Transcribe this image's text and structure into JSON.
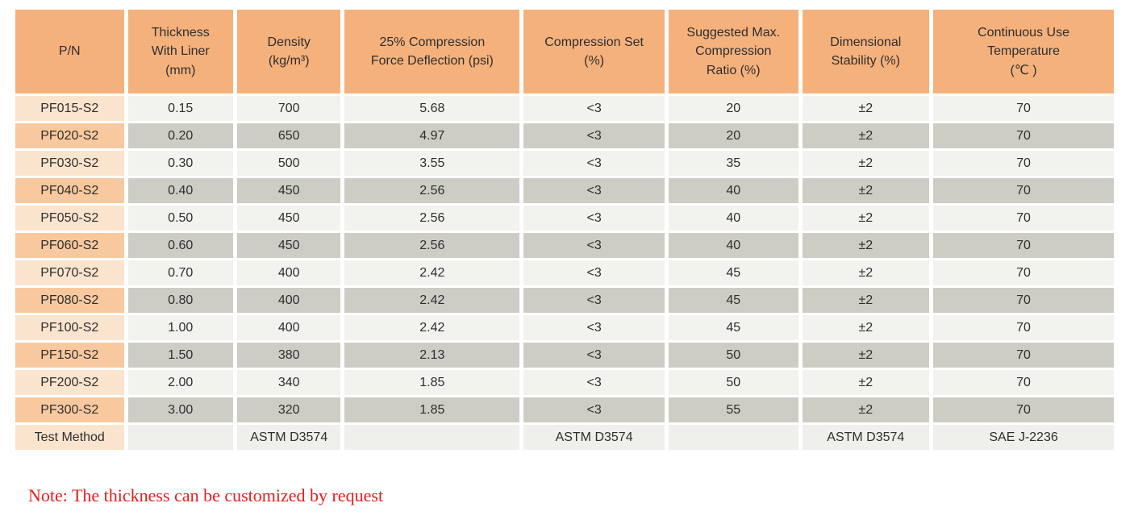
{
  "colors": {
    "header_bg": "#F5B17C",
    "pn_stripe_light_bg": "#FBE4CE",
    "pn_stripe_dark_bg": "#F8C99E",
    "cell_stripe_light_bg": "#F2F2EE",
    "cell_stripe_dark_bg": "#CDCDC6",
    "footer_cell_bg": "#EFEFEB",
    "text": "#2E2E2E",
    "note": "#E81B1B"
  },
  "table": {
    "columns": [
      "P/N",
      "Thickness\nWith Liner\n(mm)",
      "Density\n(kg/m³)",
      "25% Compression\nForce Deflection (psi)",
      "Compression Set\n(%)",
      "Suggested Max.\nCompression\nRatio (%)",
      "Dimensional\nStability (%)",
      "Continuous Use\nTemperature\n(℃ )"
    ],
    "rows": [
      [
        "PF015-S2",
        "0.15",
        "700",
        "5.68",
        "<3",
        "20",
        "±2",
        "70"
      ],
      [
        "PF020-S2",
        "0.20",
        "650",
        "4.97",
        "<3",
        "20",
        "±2",
        "70"
      ],
      [
        "PF030-S2",
        "0.30",
        "500",
        "3.55",
        "<3",
        "35",
        "±2",
        "70"
      ],
      [
        "PF040-S2",
        "0.40",
        "450",
        "2.56",
        "<3",
        "40",
        "±2",
        "70"
      ],
      [
        "PF050-S2",
        "0.50",
        "450",
        "2.56",
        "<3",
        "40",
        "±2",
        "70"
      ],
      [
        "PF060-S2",
        "0.60",
        "450",
        "2.56",
        "<3",
        "40",
        "±2",
        "70"
      ],
      [
        "PF070-S2",
        "0.70",
        "400",
        "2.42",
        "<3",
        "45",
        "±2",
        "70"
      ],
      [
        "PF080-S2",
        "0.80",
        "400",
        "2.42",
        "<3",
        "45",
        "±2",
        "70"
      ],
      [
        "PF100-S2",
        "1.00",
        "400",
        "2.42",
        "<3",
        "45",
        "±2",
        "70"
      ],
      [
        "PF150-S2",
        "1.50",
        "380",
        "2.13",
        "<3",
        "50",
        "±2",
        "70"
      ],
      [
        "PF200-S2",
        "2.00",
        "340",
        "1.85",
        "<3",
        "50",
        "±2",
        "70"
      ],
      [
        "PF300-S2",
        "3.00",
        "320",
        "1.85",
        "<3",
        "55",
        "±2",
        "70"
      ]
    ],
    "footer_row": [
      "Test Method",
      "",
      "ASTM D3574",
      "",
      "ASTM D3574",
      "",
      "ASTM D3574",
      "SAE J-2236"
    ]
  },
  "note": "Note: The thickness can be customized by request"
}
